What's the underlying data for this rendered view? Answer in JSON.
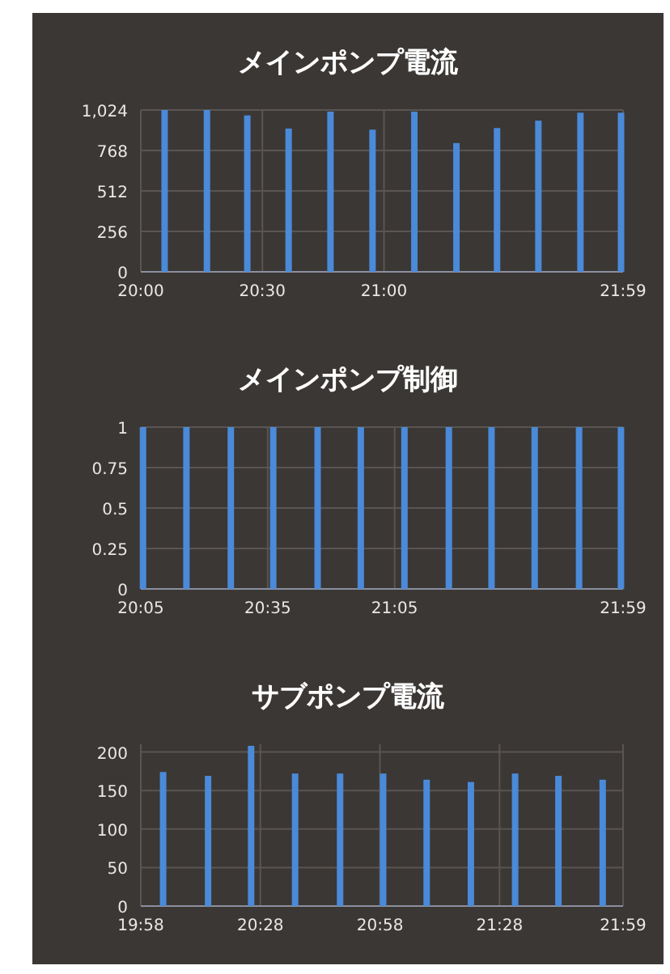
{
  "chart_data": [
    {
      "type": "bar",
      "title": "メインポンプ電流",
      "grid": true,
      "xlim": [
        20,
        21.9833
      ],
      "xticks": [
        {
          "value": 20,
          "label": "20:00"
        },
        {
          "value": 20.5,
          "label": "20:30"
        },
        {
          "value": 21,
          "label": "21:00"
        },
        {
          "value": 21.9833,
          "label": "21:59"
        }
      ],
      "ylim": [
        0,
        1024
      ],
      "yticks": [
        0,
        256,
        512,
        768,
        {
          "value": 1024,
          "label": "1,024"
        }
      ],
      "series": [
        {
          "color": "#4a8ad8",
          "x": [
            20.098,
            20.272,
            20.438,
            20.608,
            20.78,
            20.953,
            21.125,
            21.298,
            21.465,
            21.635,
            21.808,
            21.975
          ],
          "values": [
            1024,
            1024,
            990,
            907,
            1014,
            900,
            1014,
            815,
            910,
            957,
            1007,
            1007
          ]
        }
      ]
    },
    {
      "type": "bar",
      "title": "メインポンプ制御",
      "grid": true,
      "xlim": [
        20.0833,
        21.9833
      ],
      "xticks": [
        {
          "value": 20.0833,
          "label": "20:05"
        },
        {
          "value": 20.5833,
          "label": "20:35"
        },
        {
          "value": 21.0833,
          "label": "21:05"
        },
        {
          "value": 21.9833,
          "label": "21:59"
        }
      ],
      "ylim": [
        0,
        1
      ],
      "yticks": [
        0,
        0.25,
        0.5,
        0.75,
        1
      ],
      "series": [
        {
          "color": "#4a8ad8",
          "x": [
            20.092,
            20.263,
            20.438,
            20.605,
            20.78,
            20.95,
            21.122,
            21.297,
            21.465,
            21.635,
            21.81,
            21.975
          ],
          "values": [
            1,
            1,
            1,
            1,
            1,
            1,
            1,
            1,
            1,
            1,
            1,
            1
          ]
        }
      ]
    },
    {
      "type": "bar",
      "title": "サブポンプ電流",
      "grid": true,
      "xlim": [
        19.9667,
        21.9833
      ],
      "xticks": [
        {
          "value": 19.9667,
          "label": "19:58"
        },
        {
          "value": 20.4667,
          "label": "20:28"
        },
        {
          "value": 20.9667,
          "label": "20:58"
        },
        {
          "value": 21.4667,
          "label": "21:28"
        },
        {
          "value": 21.9833,
          "label": "21:59"
        }
      ],
      "ylim": [
        0,
        210
      ],
      "yticks": [
        0,
        50,
        100,
        150,
        200
      ],
      "series": [
        {
          "color": "#4a8ad8",
          "x": [
            20.06,
            20.248,
            20.428,
            20.612,
            20.8,
            20.98,
            21.162,
            21.347,
            21.532,
            21.713,
            21.898
          ],
          "values": [
            174,
            169,
            208,
            172,
            172,
            172,
            164,
            161,
            172,
            169,
            164
          ]
        }
      ]
    }
  ]
}
